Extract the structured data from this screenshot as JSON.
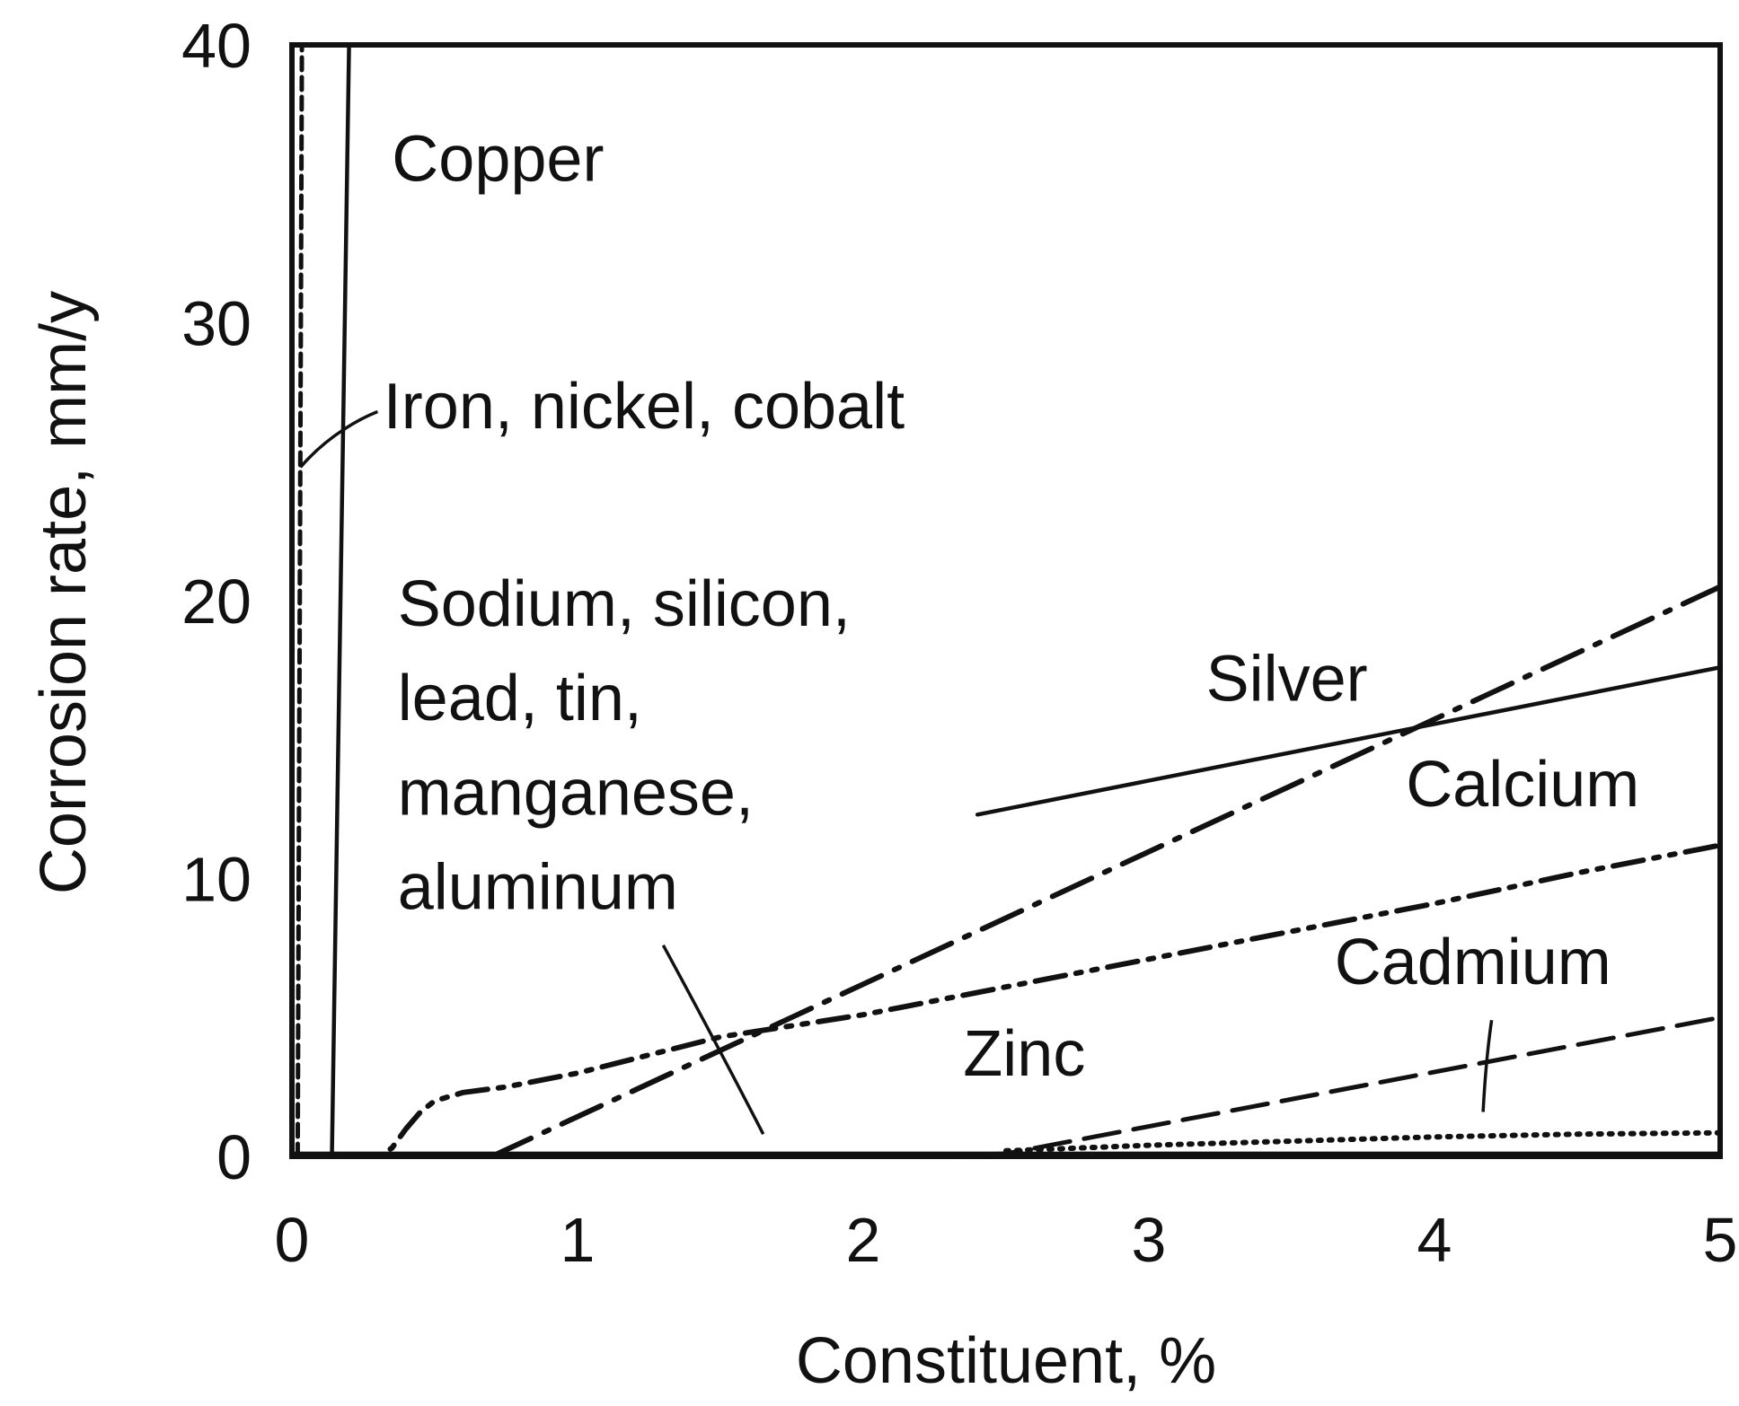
{
  "chart_data": {
    "type": "line",
    "title": "",
    "xlabel": "Constituent, %",
    "ylabel": "Corrosion rate, mm/y",
    "xlim": [
      0,
      5
    ],
    "ylim": [
      0,
      40
    ],
    "xticks": [
      "0",
      "1",
      "2",
      "3",
      "4",
      "5"
    ],
    "yticks": [
      "0",
      "10",
      "20",
      "30",
      "40"
    ],
    "grid": false,
    "legend": "none",
    "line_color": "#111111",
    "series": [
      {
        "name": "Copper",
        "style": "solid",
        "x": [
          0.14,
          0.2
        ],
        "y": [
          0,
          40
        ]
      },
      {
        "name": "Iron, nickel, cobalt",
        "style": "short-dash",
        "x": [
          0.02,
          0.035
        ],
        "y": [
          0,
          40
        ]
      },
      {
        "name": "Silver",
        "style": "solid",
        "x": [
          2.4,
          5.0
        ],
        "y": [
          12.3,
          17.6
        ]
      },
      {
        "name": "Calcium",
        "style": "dash-dot",
        "x": [
          0.7,
          5.0
        ],
        "y": [
          0,
          20.5
        ]
      },
      {
        "name": "Sodium, silicon, lead, tin, manganese, aluminum",
        "style": "solid",
        "x": [
          0,
          5.0
        ],
        "y": [
          0.1,
          0.1
        ]
      },
      {
        "name": "Zinc",
        "style": "dash-dot-dot",
        "x": [
          0.15,
          0.3,
          0.35,
          0.4,
          0.45,
          0.5,
          0.6,
          0.75,
          1.0,
          1.5,
          2.0,
          2.5,
          3.0,
          3.5,
          4.0,
          4.5,
          5.0
        ],
        "y": [
          0,
          0,
          0.3,
          1.0,
          1.6,
          2.0,
          2.3,
          2.5,
          3.0,
          4.3,
          5.1,
          6.1,
          7.1,
          8.1,
          9.1,
          10.2,
          11.2
        ]
      },
      {
        "name": "Cadmium",
        "style": "long-dash",
        "x": [
          2.25,
          2.5,
          5.0
        ],
        "y": [
          0,
          0.1,
          5.0
        ]
      },
      {
        "name": "",
        "style": "dotted",
        "x": [
          2.5,
          3.0,
          3.5,
          4.0,
          4.5,
          5.0
        ],
        "y": [
          0.2,
          0.4,
          0.55,
          0.7,
          0.8,
          0.85
        ]
      }
    ],
    "annotations": [
      {
        "lines": [
          "Copper"
        ],
        "x": 0.35,
        "y": 35.1
      },
      {
        "lines": [
          "Iron, nickel, cobalt"
        ],
        "x": 0.32,
        "y": 26.2
      },
      {
        "lines": [
          "Sodium, silicon,",
          "lead, tin,",
          "manganese,",
          "aluminum"
        ],
        "x": 0.37,
        "y": 19.1,
        "line_step": 3.4
      },
      {
        "lines": [
          "Silver"
        ],
        "x": 3.2,
        "y": 16.4
      },
      {
        "lines": [
          "Calcium"
        ],
        "x": 3.9,
        "y": 12.6
      },
      {
        "lines": [
          "Cadmium"
        ],
        "x": 3.65,
        "y": 6.2
      },
      {
        "lines": [
          "Zinc"
        ],
        "x": 2.35,
        "y": 2.9
      }
    ],
    "leaders": [
      {
        "x": [
          0.03,
          0.13,
          0.25,
          0.3
        ],
        "y": [
          24.8,
          26.0,
          26.6,
          26.8
        ]
      },
      {
        "x": [
          1.3,
          1.5,
          1.65
        ],
        "y": [
          7.6,
          3.8,
          0.8
        ]
      },
      {
        "x": [
          4.2,
          4.18,
          4.17
        ],
        "y": [
          4.9,
          3.5,
          1.6
        ]
      }
    ]
  }
}
